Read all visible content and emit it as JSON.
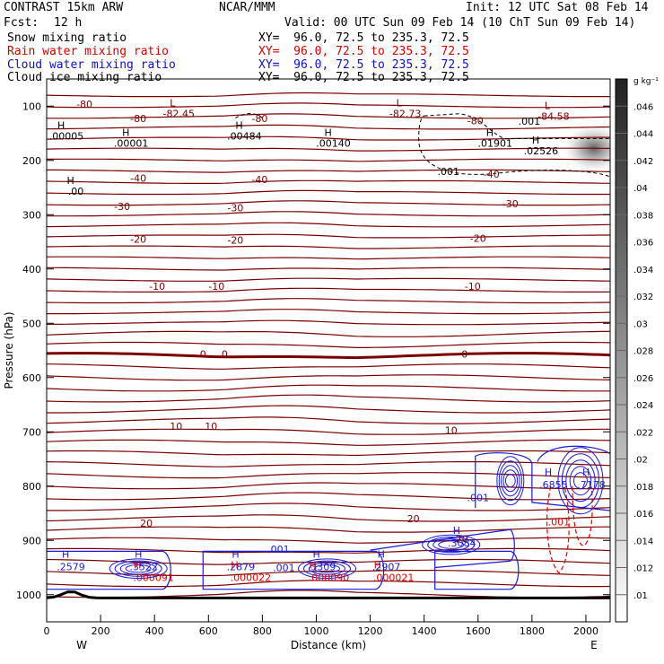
{
  "header": {
    "title": "CONTRAST 15km ARW",
    "center": "NCAR/MMM",
    "init": "Init: 12 UTC Sat 08 Feb 14",
    "fcst_label": "Fcst:",
    "fcst_value": "12 h",
    "valid": "Valid: 00 UTC Sun 09 Feb 14 (10 ChT Sun 09 Feb 14)",
    "lines": [
      {
        "label": "Snow mixing ratio",
        "xy": "XY=  96.0, 72.5 to 235.3, 72.5",
        "color": "#000000"
      },
      {
        "label": "Rain water mixing ratio",
        "xy": "XY=  96.0, 72.5 to 235.3, 72.5",
        "color": "#d00000"
      },
      {
        "label": "Cloud water mixing ratio",
        "xy": "XY=  96.0, 72.5 to 235.3, 72.5",
        "color": "#1010c0"
      },
      {
        "label": "Cloud ice mixing ratio",
        "xy": "XY=  96.0, 72.5 to 235.3, 72.5",
        "color": "#000000"
      }
    ]
  },
  "chart_data": {
    "type": "contour",
    "xlabel": "Distance (km)",
    "ylabel": "Pressure (hPa)",
    "xlim": [
      0,
      2090
    ],
    "ylim": [
      1050,
      50
    ],
    "x_ticks": [
      0,
      200,
      400,
      600,
      800,
      1000,
      1200,
      1400,
      1600,
      1800,
      2000
    ],
    "y_ticks": [
      100,
      200,
      300,
      400,
      500,
      600,
      700,
      800,
      900,
      1000
    ],
    "west_label": "W",
    "east_label": "E",
    "colorbar": {
      "unit": "g kg⁻¹",
      "ticks": [
        ".01",
        ".012",
        ".014",
        ".016",
        ".018",
        ".02",
        ".022",
        ".024",
        ".026",
        ".028",
        ".03",
        ".032",
        ".034",
        ".036",
        ".038",
        ".04",
        ".042",
        ".044",
        ".046"
      ]
    },
    "temperature_contours": [
      {
        "label": "-80",
        "pressure": 96
      },
      {
        "label": "-40",
        "pressure": 230
      },
      {
        "label": "-30",
        "pressure": 280
      },
      {
        "label": "-20",
        "pressure": 344
      },
      {
        "label": "-10",
        "pressure": 434
      },
      {
        "label": "0",
        "pressure": 555
      },
      {
        "label": "10",
        "pressure": 690
      },
      {
        "label": "20",
        "pressure": 874
      }
    ],
    "temperature_labels": [
      {
        "text": "-80",
        "x": 140,
        "p": 96
      },
      {
        "text": "-80",
        "x": 340,
        "p": 123
      },
      {
        "text": "-80",
        "x": 790,
        "p": 123
      },
      {
        "text": "-80",
        "x": 1590,
        "p": 127
      },
      {
        "text": "-40",
        "x": 340,
        "p": 233
      },
      {
        "text": "-40",
        "x": 790,
        "p": 235
      },
      {
        "text": "-40",
        "x": 1650,
        "p": 225
      },
      {
        "text": "-30",
        "x": 280,
        "p": 285
      },
      {
        "text": "-30",
        "x": 700,
        "p": 287
      },
      {
        "text": "-30",
        "x": 1720,
        "p": 280
      },
      {
        "text": "-20",
        "x": 340,
        "p": 345
      },
      {
        "text": "-20",
        "x": 700,
        "p": 347
      },
      {
        "text": "-20",
        "x": 1600,
        "p": 343
      },
      {
        "text": "-10",
        "x": 410,
        "p": 432
      },
      {
        "text": "-10",
        "x": 630,
        "p": 432
      },
      {
        "text": "-10",
        "x": 1580,
        "p": 432
      },
      {
        "text": "0",
        "x": 580,
        "p": 557
      },
      {
        "text": "0",
        "x": 660,
        "p": 557
      },
      {
        "text": "0",
        "x": 1550,
        "p": 557
      },
      {
        "text": "10",
        "x": 480,
        "p": 690
      },
      {
        "text": "10",
        "x": 610,
        "p": 690
      },
      {
        "text": "10",
        "x": 1500,
        "p": 697
      },
      {
        "text": "20",
        "x": 370,
        "p": 868
      },
      {
        "text": "20",
        "x": 1360,
        "p": 860
      },
      {
        "text": "20",
        "x": 1540,
        "p": 897
      }
    ],
    "tropopause_lows": [
      {
        "value": "-82.45",
        "x": 490,
        "p": 110
      },
      {
        "value": "-82.73",
        "x": 1330,
        "p": 110
      },
      {
        "value": "-84.58",
        "x": 1880,
        "p": 115
      }
    ],
    "cloud_ice_highs": [
      {
        "value": ".00005",
        "x": 60,
        "p": 155
      },
      {
        "value": ".00001",
        "x": 300,
        "p": 168
      },
      {
        "value": ".00484",
        "x": 720,
        "p": 155
      },
      {
        "value": ".00140",
        "x": 1050,
        "p": 168
      },
      {
        "value": ".01901",
        "x": 1650,
        "p": 168
      },
      {
        "value": ".02526",
        "x": 1820,
        "p": 182
      },
      {
        "value": ".00",
        "x": 95,
        "p": 257
      }
    ],
    "cloud_ice_labels": [
      {
        "text": ".001",
        "x": 1790,
        "p": 128
      },
      {
        "text": ".001",
        "x": 1490,
        "p": 220
      }
    ],
    "cloud_water_highs": [
      {
        "value": ".2579",
        "x": 70,
        "p": 952
      },
      {
        "value": ".3522",
        "x": 340,
        "p": 952
      },
      {
        "value": ".2879",
        "x": 700,
        "p": 952
      },
      {
        "value": ".3309",
        "x": 1000,
        "p": 952
      },
      {
        "value": ".2907",
        "x": 1240,
        "p": 952
      },
      {
        "value": ".3084",
        "x": 1520,
        "p": 908
      },
      {
        "value": ".6855",
        "x": 1860,
        "p": 800
      },
      {
        "value": ".7178",
        "x": 2000,
        "p": 800
      }
    ],
    "cloud_water_labels": [
      {
        "text": ".001",
        "x": 860,
        "p": 916
      },
      {
        "text": ".001",
        "x": 880,
        "p": 950
      },
      {
        "text": ".001",
        "x": 1600,
        "p": 821
      }
    ],
    "rain_water_highs": [
      {
        "value": ".000091",
        "x": 370,
        "p": 958
      },
      {
        "value": ".000022",
        "x": 730,
        "p": 958
      },
      {
        "value": ".000090",
        "x": 1020,
        "p": 958
      },
      {
        "value": ".000021",
        "x": 1260,
        "p": 958
      }
    ],
    "rain_water_labels": [
      {
        "text": ".001",
        "x": 1900,
        "p": 866
      }
    ],
    "colors": {
      "temperature": "#7a0000",
      "zero_isotherm": "#7a0000",
      "cloud_water": "#1a1adc",
      "rain_water": "#e00000",
      "cloud_ice": "#000000",
      "ground": "#000000"
    }
  }
}
